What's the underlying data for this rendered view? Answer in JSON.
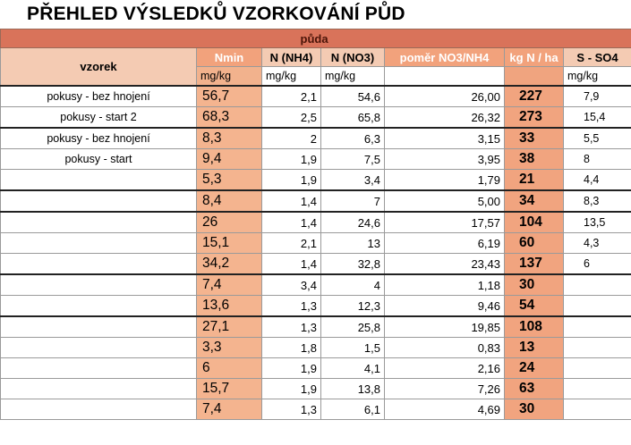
{
  "title": "PŘEHLED VÝSLEDKŮ VZORKOVÁNÍ PŮD",
  "band_label": "půda",
  "headers": {
    "vzorek": "vzorek",
    "nmin": "Nmin",
    "nh4": "N (NH4)",
    "no3": "N (NO3)",
    "pomer": "poměr NO3/NH4",
    "kg": "kg N / ha",
    "so4": "S - SO4"
  },
  "units": {
    "nmin": "mg/kg",
    "nh4": "mg/kg",
    "no3": "mg/kg",
    "so4": "mg/kg"
  },
  "rows": [
    {
      "vzorek": "pokusy - bez hnojení",
      "nmin": "56,7",
      "nh4": "2,1",
      "no3": "54,6",
      "pomer": "26,00",
      "kg": "227",
      "so4": "7,9"
    },
    {
      "vzorek": "pokusy - start 2",
      "nmin": "68,3",
      "nh4": "2,5",
      "no3": "65,8",
      "pomer": "26,32",
      "kg": "273",
      "so4": "15,4"
    },
    {
      "vzorek": "pokusy - bez hnojení",
      "nmin": "8,3",
      "nh4": "2",
      "no3": "6,3",
      "pomer": "3,15",
      "kg": "33",
      "so4": "5,5"
    },
    {
      "vzorek": "pokusy - start",
      "nmin": "9,4",
      "nh4": "1,9",
      "no3": "7,5",
      "pomer": "3,95",
      "kg": "38",
      "so4": "8"
    },
    {
      "vzorek": "",
      "nmin": "5,3",
      "nh4": "1,9",
      "no3": "3,4",
      "pomer": "1,79",
      "kg": "21",
      "so4": "4,4"
    },
    {
      "vzorek": "",
      "nmin": "8,4",
      "nh4": "1,4",
      "no3": "7",
      "pomer": "5,00",
      "kg": "34",
      "so4": "8,3"
    },
    {
      "vzorek": "",
      "nmin": "26",
      "nh4": "1,4",
      "no3": "24,6",
      "pomer": "17,57",
      "kg": "104",
      "so4": "13,5"
    },
    {
      "vzorek": "",
      "nmin": "15,1",
      "nh4": "2,1",
      "no3": "13",
      "pomer": "6,19",
      "kg": "60",
      "so4": "4,3"
    },
    {
      "vzorek": "",
      "nmin": "34,2",
      "nh4": "1,4",
      "no3": "32,8",
      "pomer": "23,43",
      "kg": "137",
      "so4": "6"
    },
    {
      "vzorek": "",
      "nmin": "7,4",
      "nh4": "3,4",
      "no3": "4",
      "pomer": "1,18",
      "kg": "30",
      "so4": ""
    },
    {
      "vzorek": "",
      "nmin": "13,6",
      "nh4": "1,3",
      "no3": "12,3",
      "pomer": "9,46",
      "kg": "54",
      "so4": ""
    },
    {
      "vzorek": "",
      "nmin": "27,1",
      "nh4": "1,3",
      "no3": "25,8",
      "pomer": "19,85",
      "kg": "108",
      "so4": ""
    },
    {
      "vzorek": "",
      "nmin": "3,3",
      "nh4": "1,8",
      "no3": "1,5",
      "pomer": "0,83",
      "kg": "13",
      "so4": ""
    },
    {
      "vzorek": "",
      "nmin": "6",
      "nh4": "1,9",
      "no3": "4,1",
      "pomer": "2,16",
      "kg": "24",
      "so4": ""
    },
    {
      "vzorek": "",
      "nmin": "15,7",
      "nh4": "1,9",
      "no3": "13,8",
      "pomer": "7,26",
      "kg": "63",
      "so4": ""
    },
    {
      "vzorek": "",
      "nmin": "7,4",
      "nh4": "1,3",
      "no3": "6,1",
      "pomer": "4,69",
      "kg": "30",
      "so4": ""
    }
  ],
  "colors": {
    "band": "#d9735a",
    "header": "#f4cbb3",
    "accent": "#f2a27c",
    "nmin_cells": "#f4b48f",
    "kg_cells": "#f1a47f"
  }
}
